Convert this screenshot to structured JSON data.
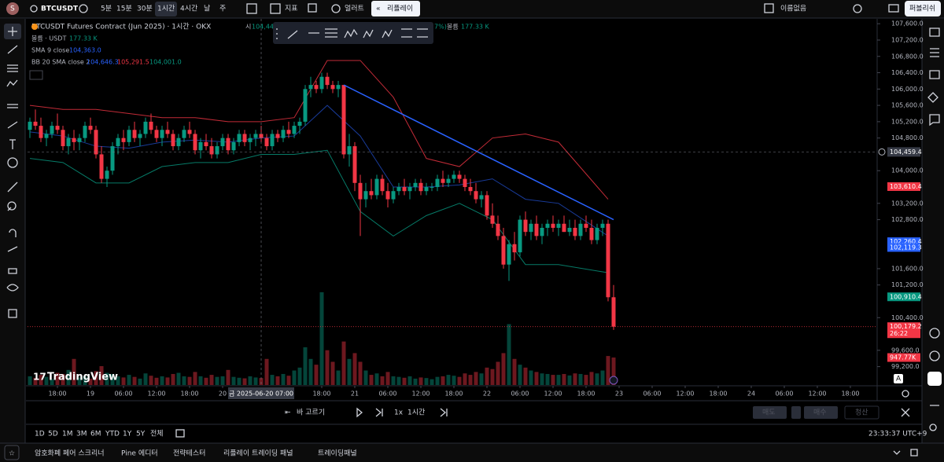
{
  "toolbar": {
    "symbol": "BTCUSDT",
    "intervals": [
      "5분",
      "15분",
      "30분",
      "1시간",
      "4시간",
      "날",
      "주"
    ],
    "selected_interval": 3,
    "indicators": "지표",
    "alert": "얼러트",
    "replay": "리플레이",
    "layout_name": "이름없음",
    "publish": "퍼블리쉬"
  },
  "legend": {
    "title": "BTCUSDT Futures Contract (Jun 2025) · 1시간 · OKX",
    "open_label": "시",
    "open_value": "104,44",
    "fragment": "7%)",
    "overlay_volume_label": "볼륨",
    "overlay_volume_value": "177.33 K",
    "volume_label": "볼륨 · USDT",
    "volume_value": "177.33 K",
    "sma_label": "SMA 9 close",
    "sma_value": "104,363.0",
    "bb_label": "BB 20 SMA close 2",
    "bb_values": [
      "104,646.3",
      "105,291.5",
      "104,001.0"
    ]
  },
  "chart_data": {
    "type": "candlestick",
    "logo": "TradingView",
    "up_color": "#089981",
    "down_color": "#f23645",
    "xlim": [
      -0.43,
      153.86
    ],
    "ylim": [
      98750,
      107700
    ],
    "vlim": [
      0,
      12600
    ],
    "grid": false,
    "ohlcv": [
      [
        105000,
        105300,
        104800,
        105200,
        300
      ],
      [
        105200,
        105500,
        105000,
        105100,
        250
      ],
      [
        105100,
        105300,
        104700,
        104800,
        350
      ],
      [
        104800,
        105000,
        104600,
        104900,
        280
      ],
      [
        104900,
        105200,
        104800,
        105100,
        200
      ],
      [
        105100,
        105400,
        104900,
        105000,
        420
      ],
      [
        105000,
        105100,
        104500,
        104600,
        380
      ],
      [
        104600,
        104900,
        104400,
        104800,
        520
      ],
      [
        104800,
        105000,
        104500,
        104700,
        900
      ],
      [
        104700,
        104900,
        104500,
        104800,
        260
      ],
      [
        104800,
        105200,
        104700,
        105100,
        300
      ],
      [
        105100,
        105300,
        104900,
        105000,
        220
      ],
      [
        105000,
        105100,
        104300,
        104400,
        480
      ],
      [
        104400,
        104600,
        103700,
        103800,
        650
      ],
      [
        103800,
        104100,
        103600,
        104000,
        420
      ],
      [
        104000,
        104700,
        103900,
        104600,
        380
      ],
      [
        104600,
        104900,
        104400,
        104800,
        300
      ],
      [
        104800,
        105000,
        104500,
        104700,
        260
      ],
      [
        104700,
        105100,
        104600,
        105000,
        350
      ],
      [
        105000,
        105200,
        104700,
        104800,
        280
      ],
      [
        104800,
        105000,
        104600,
        104900,
        220
      ],
      [
        104900,
        105300,
        104800,
        105200,
        400
      ],
      [
        105200,
        105400,
        104900,
        105000,
        320
      ],
      [
        105000,
        105100,
        104700,
        104800,
        250
      ],
      [
        104800,
        105100,
        104600,
        105000,
        300
      ],
      [
        105000,
        105200,
        104800,
        104900,
        260
      ],
      [
        104900,
        105000,
        104500,
        104600,
        380
      ],
      [
        104600,
        104900,
        104500,
        104800,
        420
      ],
      [
        104800,
        105100,
        104700,
        105000,
        300
      ],
      [
        105000,
        105200,
        104800,
        104900,
        280
      ],
      [
        104900,
        105000,
        104400,
        104500,
        450
      ],
      [
        104500,
        104800,
        104300,
        104700,
        300
      ],
      [
        104700,
        104900,
        104500,
        104600,
        250
      ],
      [
        104600,
        104800,
        104300,
        104400,
        350
      ],
      [
        104400,
        104700,
        104300,
        104600,
        280
      ],
      [
        104600,
        104900,
        104500,
        104800,
        300
      ],
      [
        104800,
        104900,
        104400,
        104500,
        520
      ],
      [
        104500,
        104800,
        104400,
        104700,
        280
      ],
      [
        104700,
        105000,
        104600,
        104900,
        250
      ],
      [
        104900,
        105000,
        104600,
        104700,
        230
      ],
      [
        104700,
        104900,
        104500,
        104800,
        300
      ],
      [
        104800,
        105000,
        104600,
        104900,
        260
      ],
      [
        104900,
        105100,
        104700,
        104800,
        240
      ],
      [
        104800,
        104900,
        104500,
        104600,
        900
      ],
      [
        104600,
        105000,
        104500,
        104900,
        350
      ],
      [
        104900,
        105000,
        104700,
        104800,
        300
      ],
      [
        104800,
        105100,
        104700,
        105000,
        380
      ],
      [
        105000,
        105200,
        104800,
        104900,
        320
      ],
      [
        104900,
        105200,
        104800,
        105100,
        500
      ],
      [
        105100,
        105300,
        104900,
        105200,
        600
      ],
      [
        105200,
        106100,
        105100,
        106000,
        1300
      ],
      [
        106000,
        106300,
        105800,
        106100,
        900
      ],
      [
        106100,
        106200,
        105900,
        106000,
        700
      ],
      [
        106000,
        106400,
        105900,
        106300,
        3200
      ],
      [
        106300,
        106400,
        106000,
        106100,
        1200
      ],
      [
        106100,
        106200,
        105900,
        106000,
        800
      ],
      [
        106000,
        106200,
        105800,
        106100,
        500
      ],
      [
        106100,
        106100,
        104300,
        104400,
        1500
      ],
      [
        104400,
        104900,
        104100,
        104600,
        900
      ],
      [
        104600,
        104700,
        103500,
        103700,
        1100
      ],
      [
        103700,
        103900,
        102400,
        103300,
        800
      ],
      [
        103300,
        103700,
        103100,
        103500,
        500
      ],
      [
        103500,
        103800,
        103300,
        103400,
        350
      ],
      [
        103400,
        103900,
        103300,
        103800,
        400
      ],
      [
        103800,
        103900,
        103400,
        103500,
        300
      ],
      [
        103500,
        103700,
        103100,
        103300,
        450
      ],
      [
        103300,
        103600,
        103200,
        103500,
        300
      ],
      [
        103500,
        103700,
        103400,
        103600,
        280
      ],
      [
        103600,
        103800,
        103400,
        103500,
        250
      ],
      [
        103500,
        103700,
        103300,
        103600,
        300
      ],
      [
        103600,
        103800,
        103500,
        103700,
        220
      ],
      [
        103700,
        103800,
        103400,
        103500,
        260
      ],
      [
        103500,
        103700,
        103400,
        103600,
        240
      ],
      [
        103600,
        103700,
        103500,
        103600,
        200
      ],
      [
        103600,
        103900,
        103500,
        103800,
        280
      ],
      [
        103800,
        104000,
        103600,
        103700,
        300
      ],
      [
        103700,
        103900,
        103600,
        103800,
        350
      ],
      [
        103800,
        104000,
        103700,
        103900,
        320
      ],
      [
        103900,
        104000,
        103700,
        103800,
        280
      ],
      [
        103800,
        103900,
        103500,
        103600,
        400
      ],
      [
        103600,
        103800,
        103400,
        103500,
        350
      ],
      [
        103500,
        103700,
        103200,
        103300,
        450
      ],
      [
        103300,
        103500,
        103100,
        103400,
        400
      ],
      [
        103400,
        103500,
        102800,
        102900,
        600
      ],
      [
        102900,
        103200,
        102600,
        102700,
        550
      ],
      [
        102700,
        102900,
        102300,
        102400,
        800
      ],
      [
        102400,
        102600,
        101600,
        101700,
        1100
      ],
      [
        101700,
        102300,
        101300,
        102200,
        2100
      ],
      [
        102200,
        102500,
        101800,
        102000,
        900
      ],
      [
        102000,
        102900,
        101900,
        102800,
        700
      ],
      [
        102800,
        103000,
        102400,
        102500,
        600
      ],
      [
        102500,
        102800,
        102300,
        102700,
        500
      ],
      [
        102700,
        102900,
        102300,
        102400,
        450
      ],
      [
        102400,
        102700,
        102200,
        102600,
        400
      ],
      [
        102600,
        102800,
        102400,
        102700,
        380
      ],
      [
        102700,
        102900,
        102500,
        102600,
        350
      ],
      [
        102600,
        102800,
        102400,
        102700,
        350
      ],
      [
        102700,
        102900,
        102500,
        102500,
        380
      ],
      [
        102500,
        102800,
        102400,
        102600,
        330
      ],
      [
        102600,
        102800,
        102300,
        102400,
        400
      ],
      [
        102400,
        102800,
        102300,
        102700,
        380
      ],
      [
        102700,
        102900,
        102500,
        102600,
        350
      ],
      [
        102600,
        102800,
        102200,
        102300,
        450
      ],
      [
        102300,
        102700,
        102200,
        102600,
        400
      ],
      [
        102600,
        102800,
        102400,
        102700,
        500
      ],
      [
        102700,
        102800,
        100800,
        100900,
        1000
      ],
      [
        100900,
        101200,
        100100,
        100179.2,
        947.77
      ]
    ],
    "bollinger": {
      "index": [
        0,
        6,
        12,
        18,
        24,
        30,
        36,
        42,
        48,
        54,
        60,
        66,
        72,
        78,
        84,
        90,
        96,
        105
      ],
      "upper": [
        105600,
        105500,
        105500,
        105400,
        105300,
        105300,
        105200,
        105200,
        105300,
        106700,
        106700,
        105800,
        104300,
        104100,
        104800,
        104900,
        104700,
        103300
      ],
      "basis": [
        104950,
        104850,
        104600,
        104550,
        104700,
        104750,
        104700,
        104800,
        104850,
        105600,
        104850,
        103600,
        103600,
        103650,
        103800,
        103300,
        103200,
        102400
      ],
      "lower": [
        104300,
        104200,
        103700,
        103700,
        104100,
        104200,
        104200,
        104400,
        104400,
        104500,
        103000,
        102400,
        102900,
        103200,
        102800,
        101700,
        101700,
        101500
      ]
    },
    "trendline": {
      "start": [
        57,
        106100
      ],
      "end": [
        106,
        102800
      ],
      "color": "#2962ff"
    },
    "yticks": [
      {
        "value": 107600,
        "label": "107,600.0"
      },
      {
        "value": 107200,
        "label": "107,200.0"
      },
      {
        "value": 106800,
        "label": "106,800.0"
      },
      {
        "value": 106400,
        "label": "106,400.0"
      },
      {
        "value": 106000,
        "label": "106,000.0"
      },
      {
        "value": 105600,
        "label": "105,600.0"
      },
      {
        "value": 105200,
        "label": "105,200.0"
      },
      {
        "value": 104800,
        "label": "104,800.0"
      },
      {
        "value": 104000,
        "label": "104,000.0"
      },
      {
        "value": 103200,
        "label": "103,200.0"
      },
      {
        "value": 102800,
        "label": "102,800.0"
      },
      {
        "value": 101600,
        "label": "101,600.0"
      },
      {
        "value": 101200,
        "label": "101,200.0"
      },
      {
        "value": 100400,
        "label": "100,400.0"
      },
      {
        "value": 99600,
        "label": "99,600.0"
      },
      {
        "value": 99200,
        "label": "99,200.0"
      }
    ],
    "xticks": [
      {
        "value": 5,
        "label": "18:00"
      },
      {
        "value": 11,
        "label": "19"
      },
      {
        "value": 17,
        "label": "06:00"
      },
      {
        "value": 23,
        "label": "12:00"
      },
      {
        "value": 29,
        "label": "18:00"
      },
      {
        "value": 35,
        "label": "20"
      },
      {
        "value": 53,
        "label": "18:00"
      },
      {
        "value": 59,
        "label": "21"
      },
      {
        "value": 65,
        "label": "06:00"
      },
      {
        "value": 71,
        "label": "12:00"
      },
      {
        "value": 77,
        "label": "18:00"
      },
      {
        "value": 83,
        "label": "22"
      },
      {
        "value": 89,
        "label": "06:00"
      },
      {
        "value": 95,
        "label": "12:00"
      },
      {
        "value": 101,
        "label": "18:00"
      },
      {
        "value": 107,
        "label": "23"
      },
      {
        "value": 113,
        "label": "06:00"
      },
      {
        "value": 119,
        "label": "12:00"
      },
      {
        "value": 125,
        "label": "18:00"
      },
      {
        "value": 131,
        "label": "24"
      },
      {
        "value": 137,
        "label": "06:00"
      },
      {
        "value": 143,
        "label": "12:00"
      },
      {
        "value": 149,
        "label": "18:00"
      }
    ],
    "crosshair": {
      "time": 42,
      "time_label": "금 2025-06-20 07:00",
      "price": 104459.4,
      "price_label": "104,459.4"
    },
    "price_labels": [
      {
        "value": 103610.4,
        "label": "103,610.4",
        "color": "#f23645"
      },
      {
        "value": 102260.4,
        "label": "102,260.4",
        "color": "#2962ff"
      },
      {
        "value": 102119.3,
        "label": "102,119.3",
        "color": "#2962ff"
      },
      {
        "value": 100910.4,
        "label": "100,910.4",
        "color": "#089981"
      },
      {
        "value": 100179.2,
        "label": "100,179.2",
        "color": "#f23645",
        "countdown": "26:22",
        "line_style": "dotted"
      },
      {
        "value": 947.77,
        "label": "947.77K",
        "color": "#f23645",
        "axis": "volume"
      }
    ]
  },
  "replay_bar": {
    "select_bar": "바 고르기",
    "speed": "1x",
    "interval": "1시간",
    "sell": "매도",
    "buy": "매수",
    "close": "청산"
  },
  "ranges": {
    "items": [
      "1D",
      "5D",
      "1M",
      "3M",
      "6M",
      "YTD",
      "1Y",
      "5Y",
      "전체"
    ],
    "clock": "23:33:37 UTC+9"
  },
  "bottom_tabs": [
    "암호화폐 페어 스크리너",
    "Pine 에디터",
    "전략테스터",
    "리플레이 트레이딩 패널",
    "트레이딩패널"
  ]
}
